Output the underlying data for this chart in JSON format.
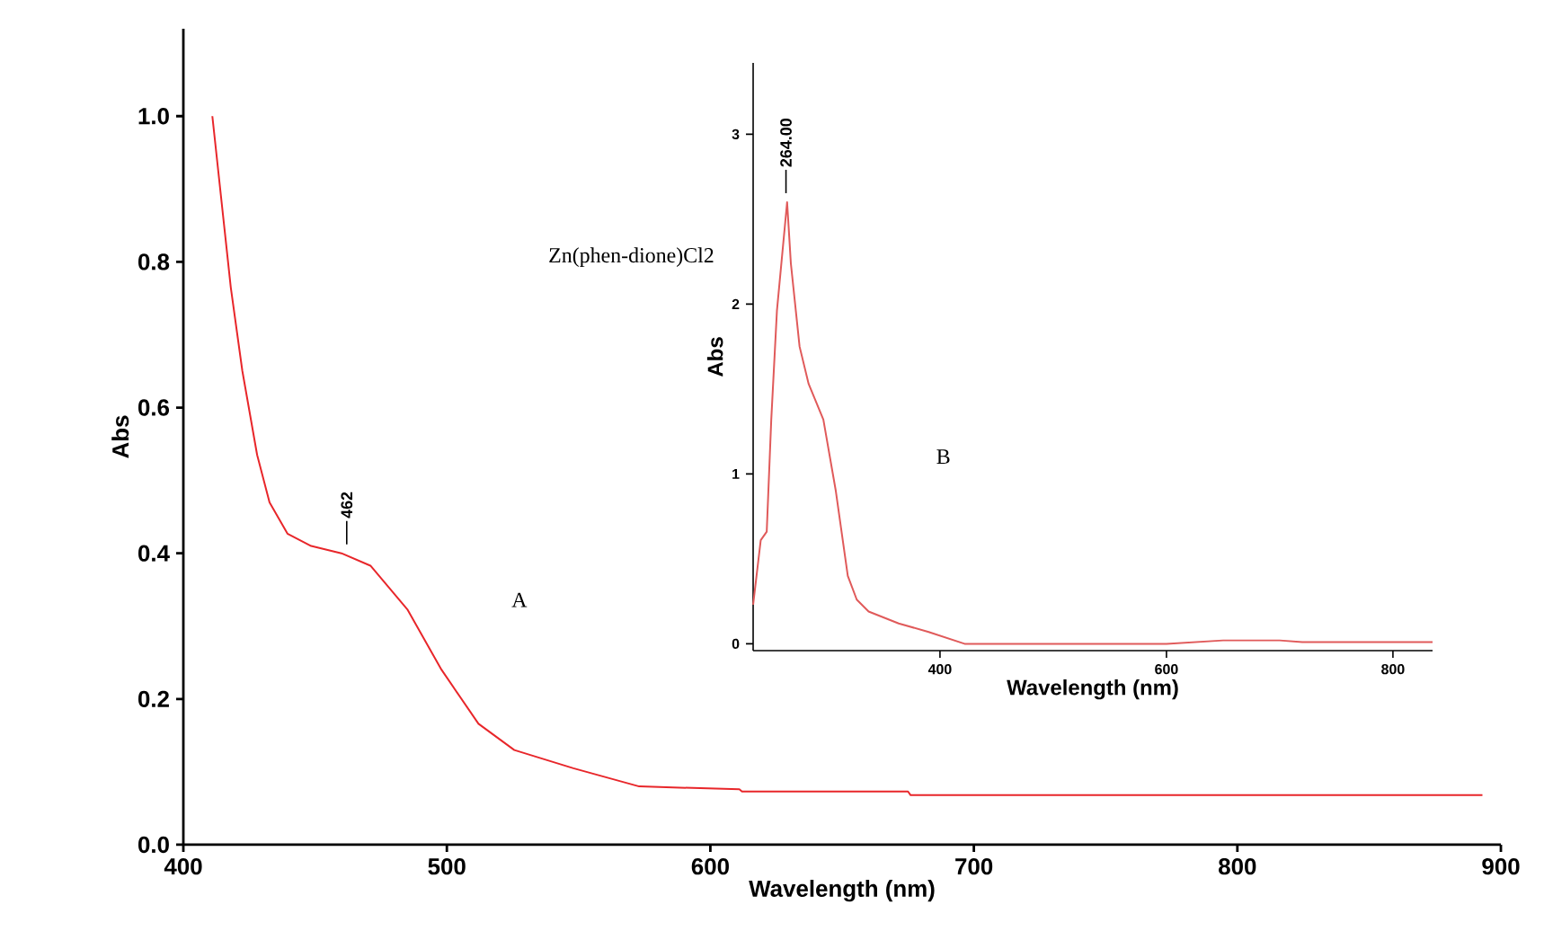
{
  "chart_data": [
    {
      "type": "line",
      "xlabel": "Wavelength (nm)",
      "ylabel": "Abs",
      "xlim": [
        400,
        900
      ],
      "ylim": [
        0,
        1.12
      ],
      "xticks": [
        400,
        500,
        600,
        700,
        800,
        900
      ],
      "yticks": [
        {
          "value": 0,
          "label": "0.0"
        },
        {
          "value": 0.2,
          "label": "0.2"
        },
        {
          "value": 0.4,
          "label": "0.4"
        },
        {
          "value": 0.6,
          "label": "0.6"
        },
        {
          "value": 0.8,
          "label": "0.8"
        },
        {
          "value": 1.0,
          "label": "1.0"
        }
      ],
      "grid": false,
      "marker": "none",
      "line_style": "solid",
      "series": [
        {
          "color": "#e8262a",
          "x": [
            411,
            418,
            422.4,
            428,
            432.7,
            439.5,
            448.5,
            460,
            471,
            485,
            498,
            512,
            525.6,
            548,
            573,
            611,
            612,
            675,
            676,
            893
          ],
          "values": [
            1.0,
            0.765,
            0.65,
            0.535,
            0.47,
            0.427,
            0.41,
            0.4,
            0.383,
            0.323,
            0.24,
            0.166,
            0.13,
            0.105,
            0.08,
            0.076,
            0.073,
            0.073,
            0.068,
            0.068
          ]
        }
      ],
      "annotations": [
        "Zn(phen-dione)Cl2",
        "A",
        {
          "text": "462",
          "x": 462,
          "y": 0.4
        }
      ]
    },
    {
      "type": "line",
      "xlabel": "Wavelength (nm)",
      "ylabel": "Abs",
      "xlim": [
        235,
        835
      ],
      "ylim": [
        -0.04,
        3.42
      ],
      "xticks": [
        400,
        600,
        800
      ],
      "yticks": [
        0,
        1,
        2,
        3
      ],
      "grid": false,
      "marker": "none",
      "line_style": "solid",
      "series": [
        {
          "color": "#e05a5a",
          "x": [
            235,
            241.7,
            247,
            251,
            256,
            265,
            268.3,
            276,
            284,
            297,
            308,
            318.6,
            326.5,
            337,
            363.5,
            390,
            421.7,
            600,
            650,
            700,
            720,
            835
          ],
          "values": [
            0.23,
            0.61,
            0.66,
            1.32,
            1.96,
            2.6,
            2.24,
            1.75,
            1.53,
            1.32,
            0.9,
            0.4,
            0.26,
            0.19,
            0.12,
            0.07,
            0.0,
            0.0,
            0.02,
            0.02,
            0.01,
            0.01
          ]
        }
      ],
      "annotations": [
        "B",
        {
          "text": "264.00",
          "x": 264,
          "y": 2.6
        }
      ]
    }
  ]
}
